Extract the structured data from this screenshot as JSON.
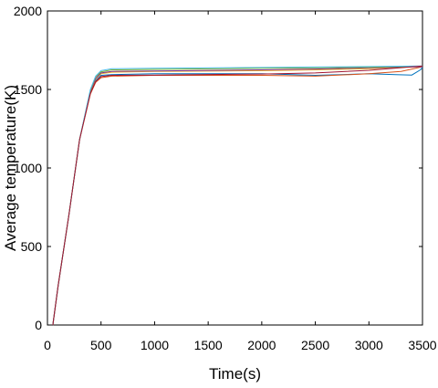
{
  "chart_data": {
    "type": "line",
    "title": "",
    "xlabel": "Time(s)",
    "ylabel": "Average temperature(K)",
    "xlim": [
      0,
      3500
    ],
    "ylim": [
      0,
      2000
    ],
    "xticks": [
      0,
      500,
      1000,
      1500,
      2000,
      2500,
      3000,
      3500
    ],
    "yticks": [
      0,
      500,
      1000,
      1500,
      2000
    ],
    "grid": false,
    "legend": "none",
    "series": [
      {
        "color": "#0072BD",
        "points": [
          [
            50,
            0
          ],
          [
            100,
            250
          ],
          [
            200,
            700
          ],
          [
            300,
            1180
          ],
          [
            400,
            1480
          ],
          [
            450,
            1555
          ],
          [
            500,
            1590
          ],
          [
            600,
            1595
          ],
          [
            1000,
            1600
          ],
          [
            2000,
            1600
          ],
          [
            2500,
            1590
          ],
          [
            3000,
            1600
          ],
          [
            3250,
            1595
          ],
          [
            3400,
            1592
          ],
          [
            3480,
            1625
          ],
          [
            3500,
            1640
          ]
        ]
      },
      {
        "color": "#D95319",
        "points": [
          [
            50,
            0
          ],
          [
            100,
            250
          ],
          [
            200,
            700
          ],
          [
            300,
            1180
          ],
          [
            400,
            1470
          ],
          [
            450,
            1545
          ],
          [
            500,
            1575
          ],
          [
            600,
            1585
          ],
          [
            1000,
            1590
          ],
          [
            2000,
            1590
          ],
          [
            2500,
            1585
          ],
          [
            3000,
            1600
          ],
          [
            3300,
            1615
          ],
          [
            3500,
            1645
          ]
        ]
      },
      {
        "color": "#EDB120",
        "points": [
          [
            50,
            0
          ],
          [
            100,
            250
          ],
          [
            200,
            700
          ],
          [
            300,
            1180
          ],
          [
            400,
            1485
          ],
          [
            450,
            1565
          ],
          [
            500,
            1600
          ],
          [
            600,
            1610
          ],
          [
            1000,
            1615
          ],
          [
            2000,
            1620
          ],
          [
            2500,
            1625
          ],
          [
            3000,
            1632
          ],
          [
            3400,
            1645
          ],
          [
            3500,
            1648
          ]
        ]
      },
      {
        "color": "#7E2F8E",
        "points": [
          [
            50,
            0
          ],
          [
            100,
            250
          ],
          [
            200,
            700
          ],
          [
            300,
            1180
          ],
          [
            400,
            1490
          ],
          [
            450,
            1570
          ],
          [
            500,
            1605
          ],
          [
            600,
            1615
          ],
          [
            1000,
            1618
          ],
          [
            2000,
            1625
          ],
          [
            2500,
            1630
          ],
          [
            3000,
            1638
          ],
          [
            3500,
            1645
          ]
        ]
      },
      {
        "color": "#77AC30",
        "points": [
          [
            50,
            0
          ],
          [
            100,
            250
          ],
          [
            200,
            700
          ],
          [
            300,
            1180
          ],
          [
            400,
            1495
          ],
          [
            450,
            1580
          ],
          [
            500,
            1612
          ],
          [
            600,
            1625
          ],
          [
            1000,
            1628
          ],
          [
            2000,
            1635
          ],
          [
            2500,
            1638
          ],
          [
            3000,
            1642
          ],
          [
            3500,
            1648
          ]
        ]
      },
      {
        "color": "#4DBEEE",
        "points": [
          [
            50,
            0
          ],
          [
            100,
            250
          ],
          [
            200,
            700
          ],
          [
            300,
            1180
          ],
          [
            400,
            1500
          ],
          [
            450,
            1585
          ],
          [
            500,
            1620
          ],
          [
            600,
            1632
          ],
          [
            1000,
            1635
          ],
          [
            2000,
            1640
          ],
          [
            2500,
            1643
          ],
          [
            3000,
            1646
          ],
          [
            3500,
            1650
          ]
        ]
      },
      {
        "color": "#A2142F",
        "points": [
          [
            50,
            0
          ],
          [
            100,
            250
          ],
          [
            200,
            700
          ],
          [
            300,
            1180
          ],
          [
            400,
            1475
          ],
          [
            450,
            1550
          ],
          [
            500,
            1582
          ],
          [
            600,
            1590
          ],
          [
            1000,
            1592
          ],
          [
            2000,
            1598
          ],
          [
            2500,
            1605
          ],
          [
            3000,
            1622
          ],
          [
            3500,
            1650
          ]
        ]
      }
    ]
  }
}
